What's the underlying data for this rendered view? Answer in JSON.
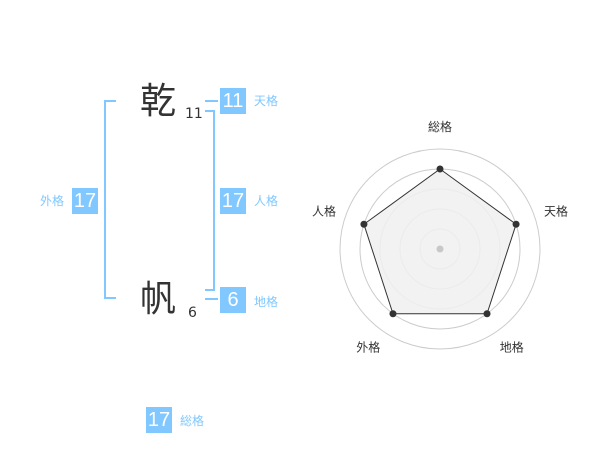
{
  "name": {
    "chars": [
      {
        "char": "乾",
        "strokes": "11"
      },
      {
        "char": "帆",
        "strokes": "6"
      }
    ]
  },
  "fortunes": {
    "tenkaku": {
      "label": "天格",
      "value": "11"
    },
    "jinkaku": {
      "label": "人格",
      "value": "17"
    },
    "chikaku": {
      "label": "地格",
      "value": "6"
    },
    "gaikaku": {
      "label": "外格",
      "value": "17"
    },
    "soukaku": {
      "label": "総格",
      "value": "17"
    }
  },
  "chart_data": {
    "type": "radar",
    "axes": [
      "総格",
      "天格",
      "地格",
      "外格",
      "人格"
    ],
    "values": [
      4,
      4,
      4,
      4,
      4
    ],
    "range": [
      0,
      5
    ],
    "rings": 5,
    "colors": {
      "fill": "#f0f0f0",
      "line": "#333333",
      "ring": "#cccccc"
    }
  },
  "colors": {
    "accent": "#80c8ff",
    "text": "#333333"
  }
}
